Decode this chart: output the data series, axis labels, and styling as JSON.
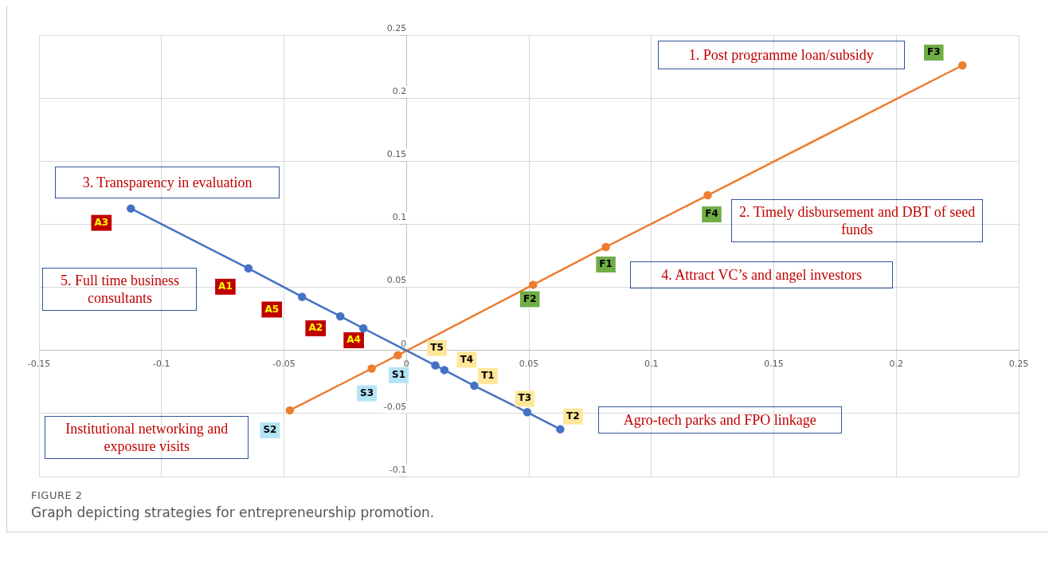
{
  "chart_data": {
    "type": "line",
    "title": "FIGURE 2",
    "subtitle": "Graph depicting strategies for entrepreneurship promotion.",
    "series": [
      {
        "color": "#4472c4",
        "x": [
          -0.1125,
          -0.0645,
          -0.0426,
          -0.027,
          -0.0176,
          0.0118,
          0.0155,
          0.0277,
          0.0493,
          0.0628
        ],
        "values": [
          0.1125,
          0.065,
          0.0425,
          0.027,
          0.0175,
          -0.0119,
          -0.0156,
          -0.028,
          -0.049,
          -0.0625
        ]
      },
      {
        "color": "#ed7d31",
        "x": [
          -0.0476,
          -0.0142,
          -0.0035,
          0.0517,
          0.0814,
          0.123,
          0.227
        ],
        "values": [
          -0.0475,
          -0.0144,
          -0.0038,
          0.052,
          0.082,
          0.123,
          0.226
        ]
      }
    ],
    "xlim": [
      -0.15,
      0.25
    ],
    "xticks": [
      -0.15,
      -0.1,
      -0.05,
      0,
      0.05,
      0.1,
      0.15,
      0.2,
      0.25
    ],
    "ylim": [
      -0.1,
      0.25
    ],
    "yticks": [
      -0.1,
      -0.05,
      0,
      0.05,
      0.1,
      0.15,
      0.2,
      0.25
    ],
    "grid": true,
    "legend": false,
    "marker": "circle",
    "line_style": "solid",
    "annotations": [
      {
        "text": "A3",
        "x": -0.1125,
        "y": 0.1125
      },
      {
        "text": "A1",
        "x": -0.0645,
        "y": 0.065
      },
      {
        "text": "A5",
        "x": -0.0426,
        "y": 0.0425
      },
      {
        "text": "A2",
        "x": -0.027,
        "y": 0.027
      },
      {
        "text": "A4",
        "x": -0.0176,
        "y": 0.0175
      },
      {
        "text": "T5",
        "x": 0.0118,
        "y": -0.0119
      },
      {
        "text": "T4",
        "x": 0.0155,
        "y": -0.0156
      },
      {
        "text": "T1",
        "x": 0.0277,
        "y": -0.028
      },
      {
        "text": "T3",
        "x": 0.0493,
        "y": -0.049
      },
      {
        "text": "T2",
        "x": 0.0628,
        "y": -0.0625
      },
      {
        "text": "S2",
        "x": -0.0476,
        "y": -0.0475
      },
      {
        "text": "S3",
        "x": -0.0142,
        "y": -0.0144
      },
      {
        "text": "S1",
        "x": -0.0035,
        "y": -0.0038
      },
      {
        "text": "F2",
        "x": 0.0517,
        "y": 0.052
      },
      {
        "text": "F1",
        "x": 0.0814,
        "y": 0.082
      },
      {
        "text": "F4",
        "x": 0.123,
        "y": 0.123
      },
      {
        "text": "F3",
        "x": 0.227,
        "y": 0.226
      },
      "1. Post programme loan/subsidy",
      "2. Timely disbursement and DBT of seed funds",
      "3. Transparency in evaluation",
      "4. Attract VC’s and angel investors",
      "5. Full time business consultants",
      "Institutional networking and exposure visits",
      "Agro-tech parks and FPO linkage"
    ]
  }
}
